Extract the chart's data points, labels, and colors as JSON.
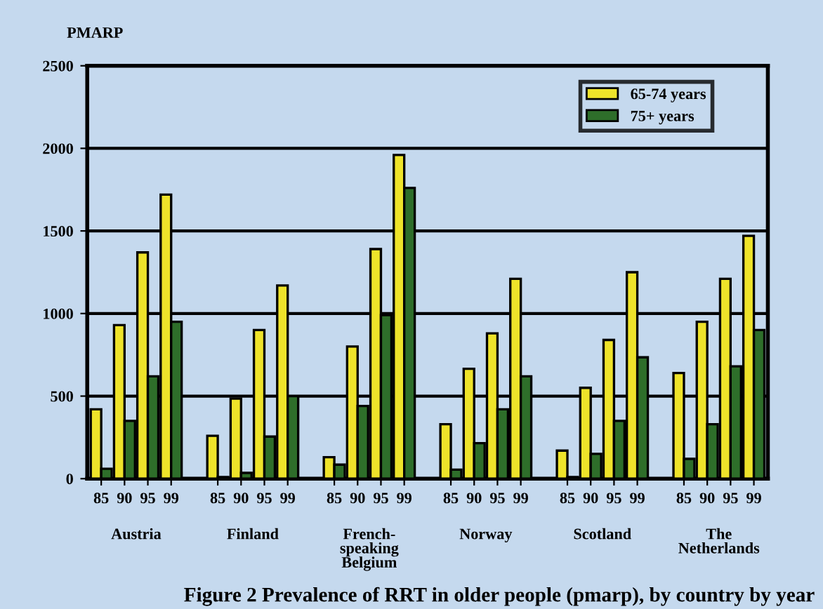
{
  "chart_data": {
    "type": "bar",
    "ylabel": "PMARP",
    "categories": [
      "85",
      "90",
      "95",
      "99",
      null,
      "85",
      "90",
      "95",
      "99",
      null,
      "85",
      "90",
      "95",
      "99",
      null,
      "85",
      "90",
      "95",
      "99",
      null,
      "85",
      "90",
      "95",
      "99",
      null,
      "85",
      "90",
      "95",
      "99"
    ],
    "series": [
      {
        "name": "65-74 years",
        "color": "#eee32a",
        "values": [
          420,
          930,
          1370,
          1720,
          null,
          260,
          485,
          900,
          1170,
          null,
          130,
          800,
          1390,
          1960,
          null,
          330,
          665,
          880,
          1210,
          null,
          170,
          550,
          840,
          1250,
          null,
          640,
          950,
          1210,
          1470
        ]
      },
      {
        "name": "75+ years",
        "color": "#2e6e2a",
        "values": [
          60,
          350,
          620,
          950,
          null,
          10,
          35,
          255,
          500,
          null,
          85,
          440,
          990,
          1760,
          null,
          55,
          215,
          420,
          620,
          null,
          10,
          150,
          350,
          735,
          null,
          120,
          330,
          680,
          900
        ]
      }
    ],
    "ylim": [
      0,
      2500
    ],
    "yticks": [
      0,
      500,
      1000,
      1500,
      2000,
      2500
    ],
    "grid": "y",
    "legend": "top right",
    "annotations": [
      "Austria",
      "Finland",
      "French-\nspeaking\nBelgium",
      "Norway",
      "Scotland",
      "The\nNetherlands",
      "Figure 2 Prevalence of RRT in older people (pmarp), by country by year"
    ]
  }
}
